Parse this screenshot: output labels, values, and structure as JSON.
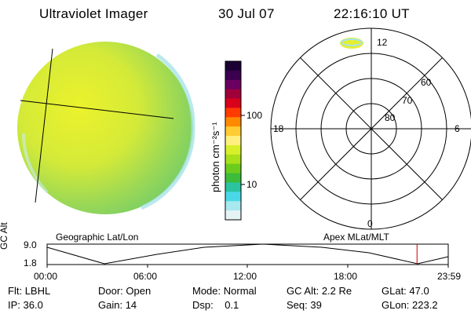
{
  "header": {
    "instrument": "Ultraviolet Imager",
    "date": "30 Jul 07",
    "time": "22:16:10 UT"
  },
  "colorbar": {
    "unit_label": "photon cm⁻²s⁻¹",
    "tick_100": "100",
    "tick_10": "10",
    "colors_top_to_bottom": [
      "#1a0033",
      "#3b0050",
      "#6a0060",
      "#a0003a",
      "#d9001c",
      "#ff3b00",
      "#ff8a00",
      "#ffcc33",
      "#fff080",
      "#d8f02a",
      "#a8e01a",
      "#6ccc1c",
      "#3dbb3a",
      "#2bc3a0",
      "#4ad8e8",
      "#a8e8ef",
      "#e6f3f4"
    ]
  },
  "left_panel": {
    "caption": "Geographic Lat/Lon",
    "fill_colors": [
      "#e2ef32",
      "#b6e142",
      "#7fcf62",
      "#9fe0e6"
    ]
  },
  "polar": {
    "caption": "Apex MLat/MLT",
    "mlt_labels": {
      "top": "12",
      "left": "18",
      "right": "6",
      "bottom": "0"
    },
    "lat_labels": {
      "r60": "60",
      "r70": "70",
      "r80": "80"
    }
  },
  "timeline": {
    "ylabel": "GC Alt",
    "ymax": "9.0",
    "ymin": "1.8",
    "xticks": [
      "00:00",
      "06:00",
      "12:00",
      "18:00",
      "23:59"
    ],
    "marker_time_fraction": 0.9222,
    "marker_color": "#cc0000"
  },
  "info": {
    "row1": [
      {
        "label": "Flt:",
        "value": "LBHL"
      },
      {
        "label": "Door:",
        "value": "Open"
      },
      {
        "label": "Mode:",
        "value": "Normal"
      },
      {
        "label": "GC Alt:",
        "value": "2.2 Re"
      },
      {
        "label": "GLat:",
        "value": "47.0"
      }
    ],
    "row2": [
      {
        "label": "IP:",
        "value": "36.0"
      },
      {
        "label": "Gain:",
        "value": "14"
      },
      {
        "label": "Dsp:",
        "value": "0.1"
      },
      {
        "label": "Seq:",
        "value": "39"
      },
      {
        "label": "GLon:",
        "value": "223.2"
      }
    ]
  }
}
